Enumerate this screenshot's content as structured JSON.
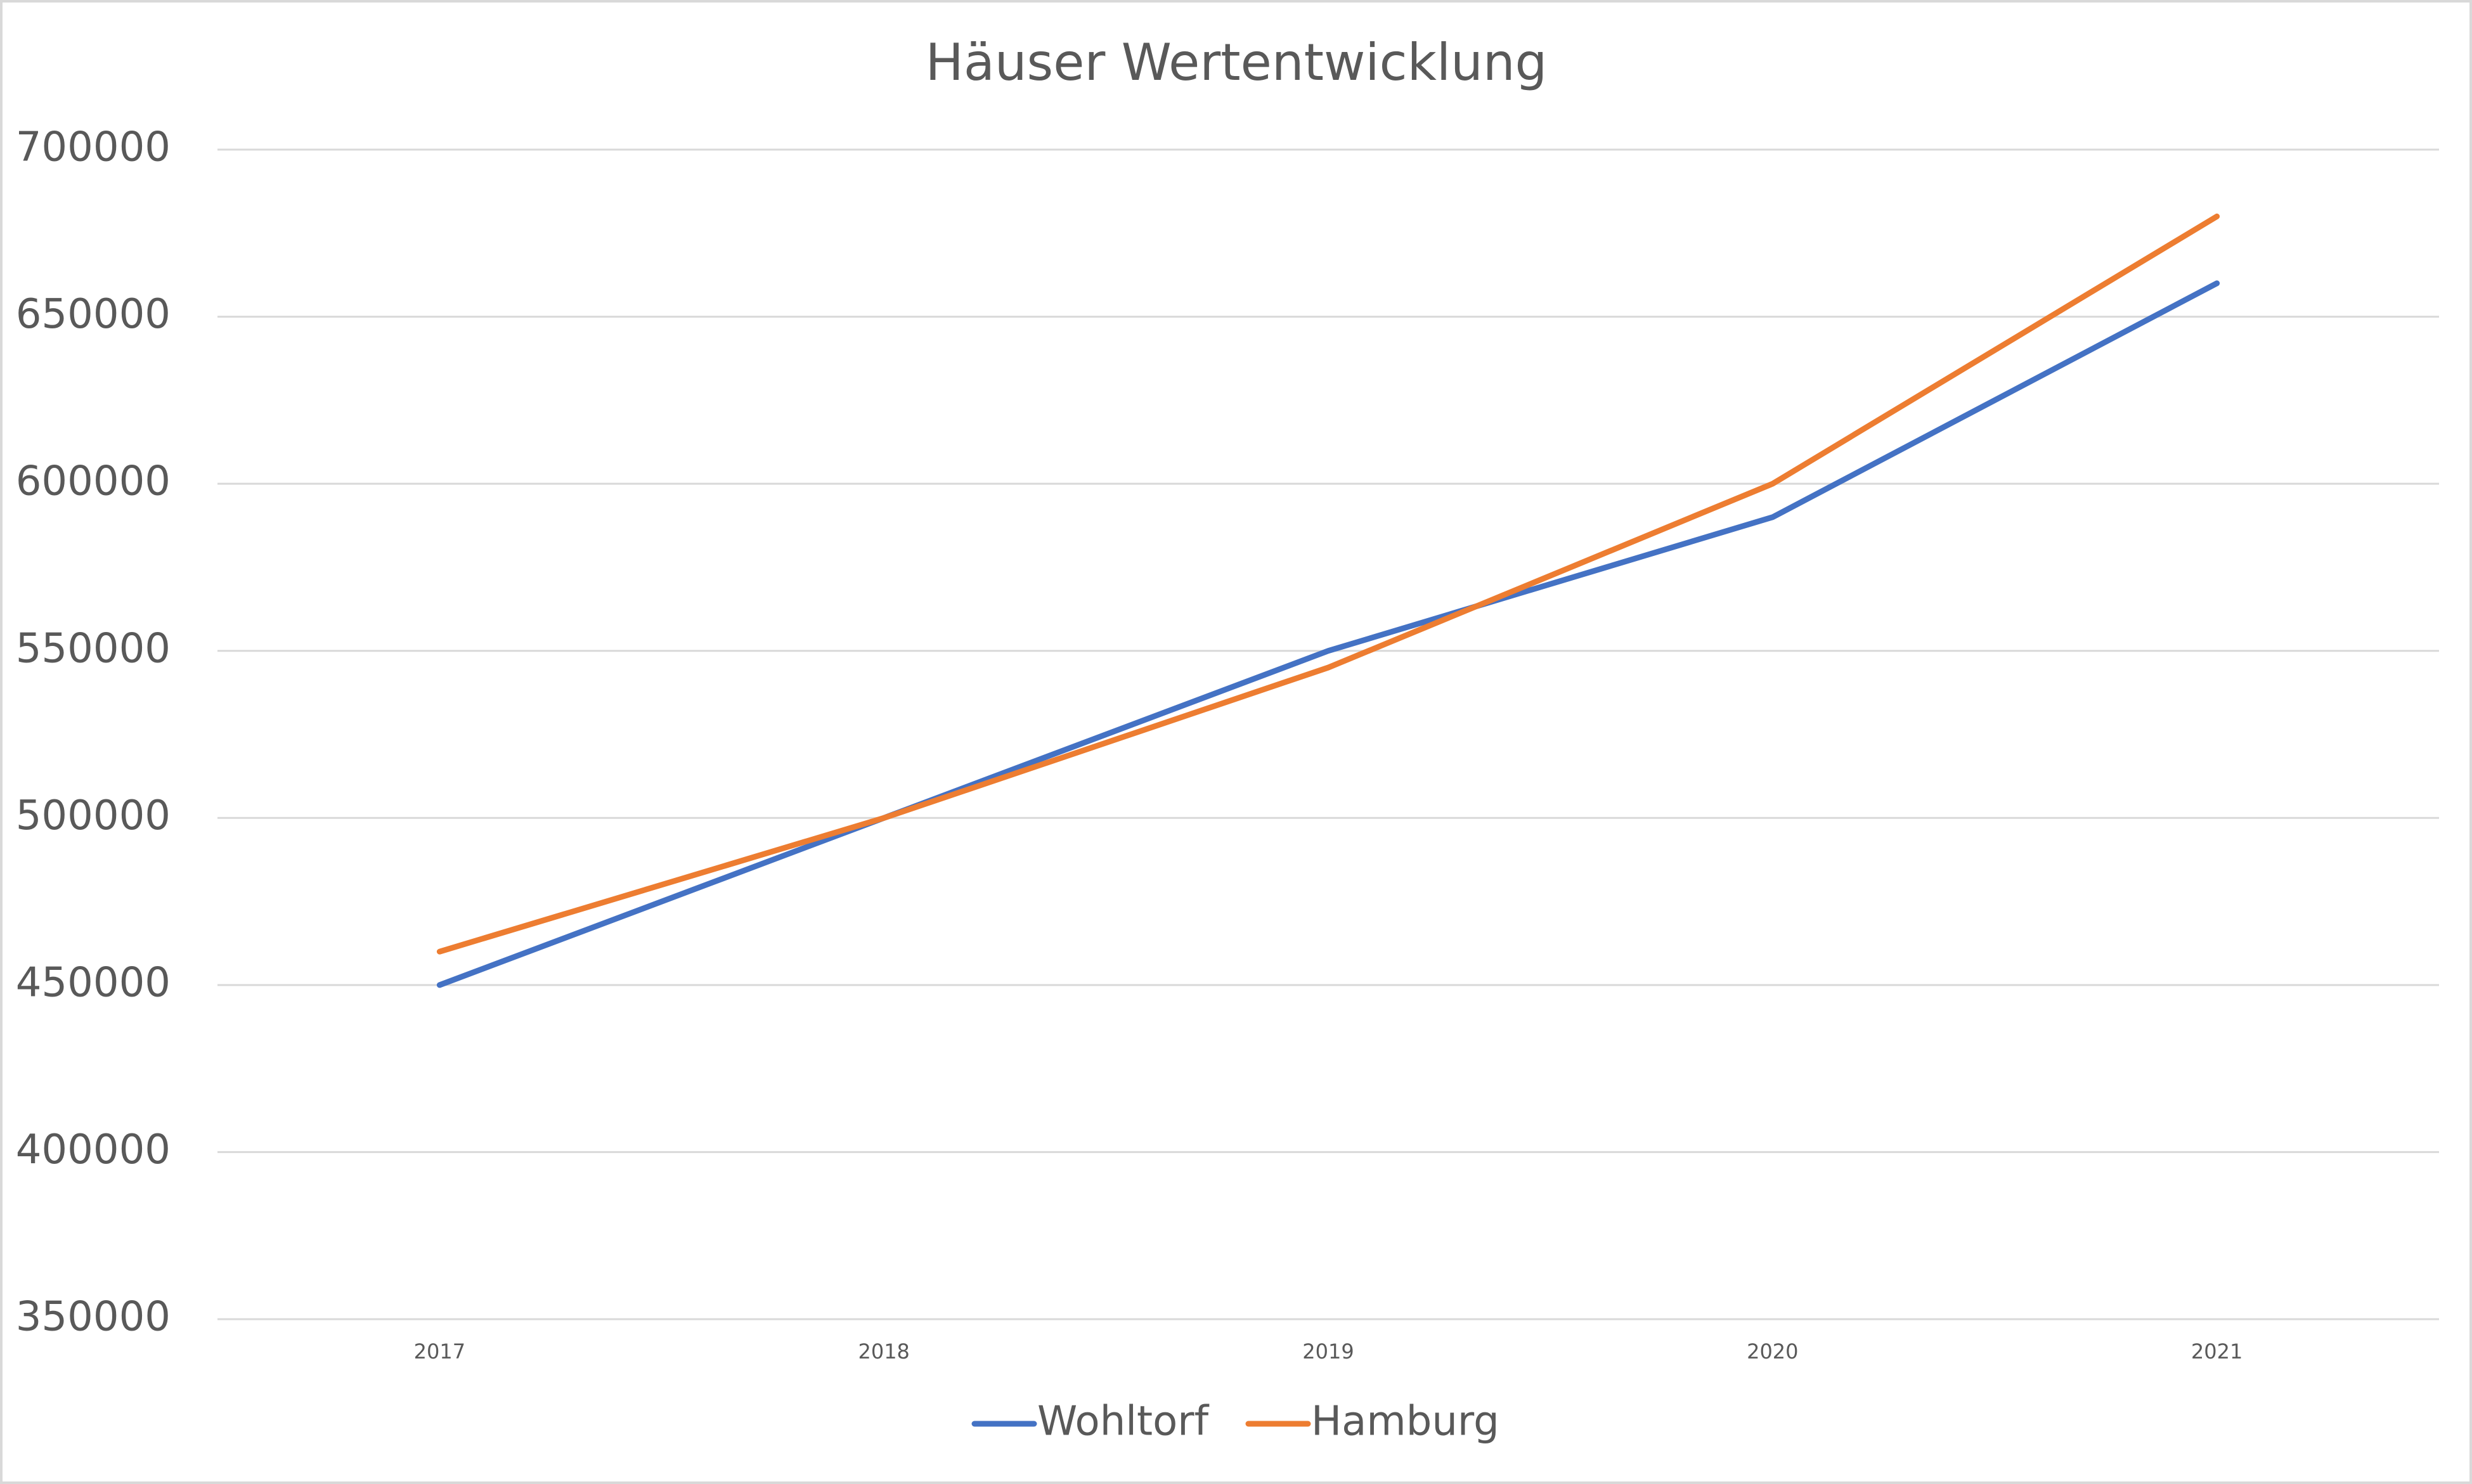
{
  "chart_data": {
    "type": "line",
    "title": "Häuser Wertentwicklung",
    "categories": [
      "2017",
      "2018",
      "2019",
      "2020",
      "2021"
    ],
    "series": [
      {
        "name": "Wohltorf",
        "color": "#4472c4",
        "values": [
          450000,
          500000,
          550000,
          590000,
          660000
        ]
      },
      {
        "name": "Hamburg",
        "color": "#ed7d31",
        "values": [
          460000,
          500000,
          545000,
          600000,
          680000
        ]
      }
    ],
    "ylim": [
      350000,
      700000
    ],
    "yticks": [
      350000,
      400000,
      450000,
      500000,
      550000,
      600000,
      650000,
      700000
    ],
    "grid": true,
    "legend": "bottom"
  }
}
